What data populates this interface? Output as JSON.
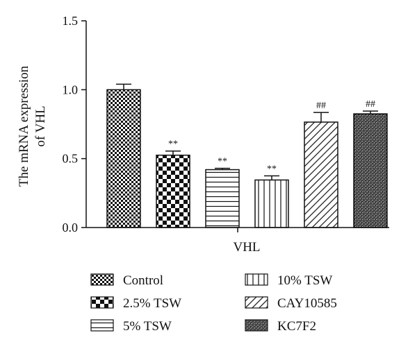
{
  "chart_data": {
    "type": "bar",
    "title": "",
    "ylabel": "The mRNA expression of VHL",
    "ylabel_lines": [
      "The mRNA expression",
      "of VHL"
    ],
    "xlabel": "",
    "category_label": "VHL",
    "ylim": [
      0,
      1.5
    ],
    "yticks": [
      0.0,
      0.5,
      1.0,
      1.5
    ],
    "ytick_labels": [
      "0.0",
      "0.5",
      "1.0",
      "1.5"
    ],
    "grid": false,
    "legend_position": "bottom",
    "series": [
      {
        "name": "Control",
        "value": 1.0,
        "error": 0.04,
        "sig": "",
        "pattern": "fine-checker"
      },
      {
        "name": "2.5% TSW",
        "value": 0.525,
        "error": 0.03,
        "sig": "**",
        "pattern": "coarse-checker"
      },
      {
        "name": "5% TSW",
        "value": 0.42,
        "error": 0.01,
        "sig": "**",
        "pattern": "horizontal-lines"
      },
      {
        "name": "10% TSW",
        "value": 0.345,
        "error": 0.03,
        "sig": "**",
        "pattern": "vertical-lines"
      },
      {
        "name": "CAY10585",
        "value": 0.765,
        "error": 0.07,
        "sig": "##",
        "pattern": "diagonal-lines"
      },
      {
        "name": "KC7F2",
        "value": 0.825,
        "error": 0.02,
        "sig": "##",
        "pattern": "dense-checker"
      }
    ],
    "colors": {
      "stroke": "#111111",
      "background": "#ffffff"
    }
  }
}
